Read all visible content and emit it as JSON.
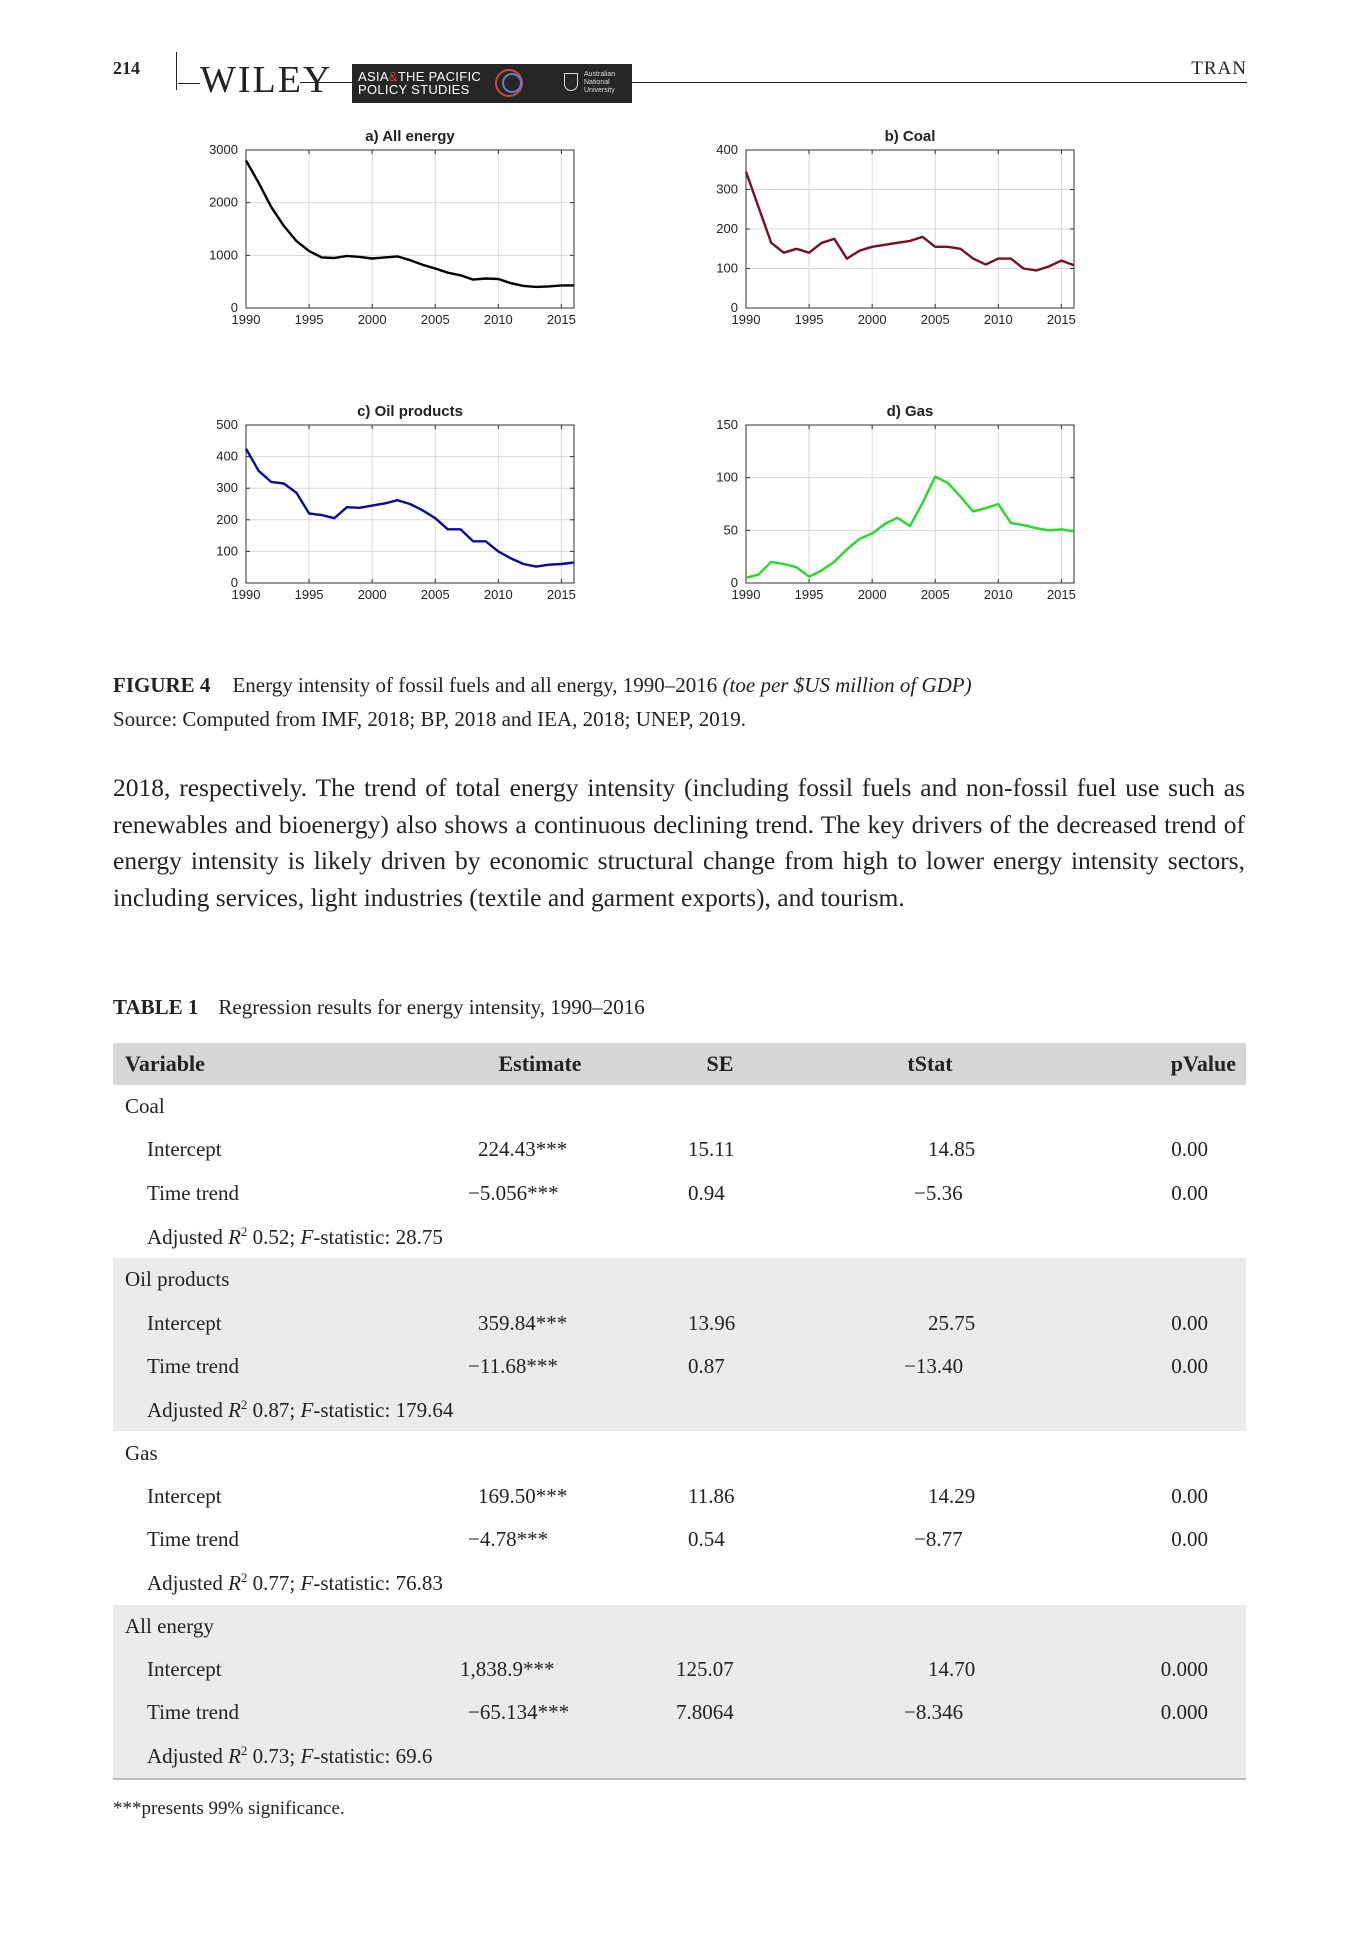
{
  "header": {
    "page_number": "214",
    "publisher": "WILEY",
    "journal_line1": "ASIA",
    "journal_amp": "&",
    "journal_line1b": "THE PACIFIC",
    "journal_line2": "POLICY STUDIES",
    "university": "Australian National University",
    "author": "TRAN"
  },
  "chart_data": [
    {
      "type": "line",
      "title": "a) All energy",
      "color": "#000000",
      "x": [
        1990,
        1991,
        1992,
        1993,
        1994,
        1995,
        1996,
        1997,
        1998,
        1999,
        2000,
        2001,
        2002,
        2003,
        2004,
        2005,
        2006,
        2007,
        2008,
        2009,
        2010,
        2011,
        2012,
        2013,
        2014,
        2015,
        2016
      ],
      "y": [
        2800,
        2380,
        1920,
        1560,
        1270,
        1080,
        960,
        950,
        990,
        970,
        940,
        960,
        980,
        910,
        820,
        750,
        670,
        620,
        540,
        560,
        550,
        470,
        420,
        400,
        410,
        430,
        430
      ],
      "xlim": [
        1990,
        2016
      ],
      "ylim": [
        0,
        3000
      ],
      "xticks": [
        "1990",
        "1995",
        "2000",
        "2005",
        "2010",
        "2015"
      ],
      "yticks": [
        "0",
        "1000",
        "2000",
        "3000"
      ],
      "ytick_values": [
        0,
        1000,
        2000,
        3000
      ]
    },
    {
      "type": "line",
      "title": "b) Coal",
      "color": "#7a0f22",
      "x": [
        1990,
        1991,
        1992,
        1993,
        1994,
        1995,
        1996,
        1997,
        1998,
        1999,
        2000,
        2001,
        2002,
        2003,
        2004,
        2005,
        2006,
        2007,
        2008,
        2009,
        2010,
        2011,
        2012,
        2013,
        2014,
        2015,
        2016
      ],
      "y": [
        345,
        255,
        165,
        140,
        150,
        140,
        165,
        175,
        125,
        145,
        155,
        160,
        165,
        170,
        180,
        155,
        155,
        150,
        125,
        110,
        125,
        125,
        100,
        95,
        105,
        120,
        108
      ],
      "xlim": [
        1990,
        2016
      ],
      "ylim": [
        0,
        400
      ],
      "xticks": [
        "1990",
        "1995",
        "2000",
        "2005",
        "2010",
        "2015"
      ],
      "yticks": [
        "0",
        "100",
        "200",
        "300",
        "400"
      ],
      "ytick_values": [
        0,
        100,
        200,
        300,
        400
      ]
    },
    {
      "type": "line",
      "title": "c) Oil products",
      "color": "#0a0aa0",
      "x": [
        1990,
        1991,
        1992,
        1993,
        1994,
        1995,
        1996,
        1997,
        1998,
        1999,
        2000,
        2001,
        2002,
        2003,
        2004,
        2005,
        2006,
        2007,
        2008,
        2009,
        2010,
        2011,
        2012,
        2013,
        2014,
        2015,
        2016
      ],
      "y": [
        425,
        355,
        320,
        315,
        285,
        220,
        215,
        205,
        240,
        238,
        245,
        252,
        262,
        250,
        230,
        205,
        170,
        170,
        132,
        132,
        100,
        78,
        60,
        52,
        58,
        60,
        65
      ],
      "xlim": [
        1990,
        2016
      ],
      "ylim": [
        0,
        500
      ],
      "xticks": [
        "1990",
        "1995",
        "2000",
        "2005",
        "2010",
        "2015"
      ],
      "yticks": [
        "0",
        "100",
        "200",
        "300",
        "400",
        "500"
      ],
      "ytick_values": [
        0,
        100,
        200,
        300,
        400,
        500
      ]
    },
    {
      "type": "line",
      "title": "d) Gas",
      "color": "#22dd22",
      "x": [
        1990,
        1991,
        1992,
        1993,
        1994,
        1995,
        1996,
        1997,
        1998,
        1999,
        2000,
        2001,
        2002,
        2003,
        2004,
        2005,
        2006,
        2007,
        2008,
        2009,
        2010,
        2011,
        2012,
        2013,
        2014,
        2015,
        2016
      ],
      "y": [
        5,
        8,
        20,
        18,
        15,
        6,
        12,
        20,
        32,
        42,
        47,
        56,
        62,
        54,
        76,
        101,
        95,
        82,
        68,
        71,
        75,
        57,
        55,
        52,
        50,
        51,
        49
      ],
      "xlim": [
        1990,
        2016
      ],
      "ylim": [
        0,
        150
      ],
      "xticks": [
        "1990",
        "1995",
        "2000",
        "2005",
        "2010",
        "2015"
      ],
      "yticks": [
        "0",
        "50",
        "100",
        "150"
      ],
      "ytick_values": [
        0,
        50,
        100,
        150
      ]
    }
  ],
  "figure_caption": {
    "label": "FIGURE 4",
    "text": "Energy intensity of fossil fuels and all energy, 1990–2016 ",
    "unit": "(toe per $US million of GDP)",
    "source": "Source: Computed from IMF, 2018; BP, 2018 and IEA, 2018; UNEP, 2019."
  },
  "body_text": "2018, respectively. The trend of total energy intensity (including fossil fuels and non-fossil fuel use such as renewables and bioenergy) also shows a continuous declining trend. The key drivers of the decreased trend of energy intensity is likely driven by economic structural change from high to lower energy intensity sectors, including services, light industries (textile and garment exports), and tourism.",
  "table": {
    "label": "TABLE 1",
    "caption": "Regression results for energy intensity, 1990–2016",
    "headers": [
      "Variable",
      "Estimate",
      "SE",
      "tStat",
      "pValue"
    ],
    "groups": [
      {
        "name": "Coal",
        "rows": [
          [
            "Intercept",
            "224.43***",
            "15.11",
            "14.85",
            "0.00"
          ],
          [
            "Time trend",
            "−5.056***",
            "0.94",
            "−5.36",
            "0.00"
          ]
        ],
        "adj_r2": "0.52",
        "f_stat": "28.75"
      },
      {
        "name": "Oil products",
        "rows": [
          [
            "Intercept",
            "359.84***",
            "13.96",
            "25.75",
            "0.00"
          ],
          [
            "Time trend",
            "−11.68***",
            "0.87",
            "−13.40",
            "0.00"
          ]
        ],
        "adj_r2": "0.87",
        "f_stat": "179.64"
      },
      {
        "name": "Gas",
        "rows": [
          [
            "Intercept",
            "169.50***",
            "11.86",
            "14.29",
            "0.00"
          ],
          [
            "Time trend",
            "−4.78***",
            "0.54",
            "−8.77",
            "0.00"
          ]
        ],
        "adj_r2": "0.77",
        "f_stat": "76.83"
      },
      {
        "name": "All energy",
        "rows": [
          [
            "Intercept",
            "1,838.9***",
            "125.07",
            "14.70",
            "0.000"
          ],
          [
            "Time trend",
            "−65.134***",
            "7.8064",
            "−8.346",
            "0.000"
          ]
        ],
        "adj_r2": "0.73",
        "f_stat": "69.6"
      }
    ],
    "adj_label": "Adjusted ",
    "r_symbol": "R",
    "r_sup": "2",
    "f_label": "-statistic: ",
    "f_symbol": "F",
    "footnote": "***presents 99% significance."
  }
}
